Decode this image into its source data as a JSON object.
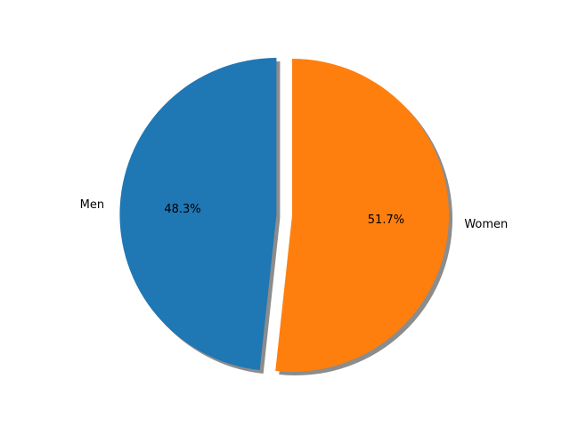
{
  "chart_data": {
    "type": "pie",
    "categories": [
      "Men",
      "Women"
    ],
    "values": [
      48.3,
      51.7
    ],
    "percent_labels": [
      "48.3%",
      "51.7%"
    ],
    "colors": [
      "#1f77b4",
      "#ff7f0e"
    ],
    "exploded": [
      "Men"
    ],
    "shadow": true,
    "title": ""
  }
}
